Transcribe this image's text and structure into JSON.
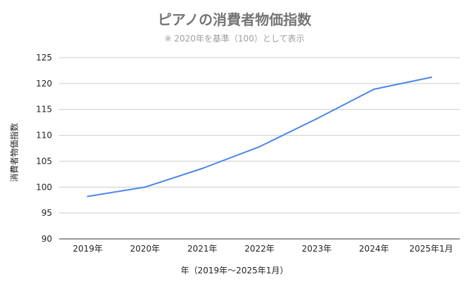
{
  "chart_data": {
    "type": "line",
    "title": "ピアノの消費者物価指数",
    "subtitle": "※ 2020年を基準（100）として表示",
    "xlabel": "年（2019年〜2025年1月）",
    "ylabel": "消費者物価指数",
    "categories": [
      "2019年",
      "2020年",
      "2021年",
      "2022年",
      "2023年",
      "2024年",
      "2025年1月"
    ],
    "series": [
      {
        "values": [
          98.2,
          100.0,
          103.6,
          107.8,
          113.2,
          118.9,
          121.2
        ]
      }
    ],
    "ylim": [
      90,
      125
    ],
    "yticks": [
      90,
      95,
      100,
      105,
      110,
      115,
      120,
      125
    ],
    "grid": true,
    "legend": "none",
    "line_color": "#4a86e8"
  }
}
